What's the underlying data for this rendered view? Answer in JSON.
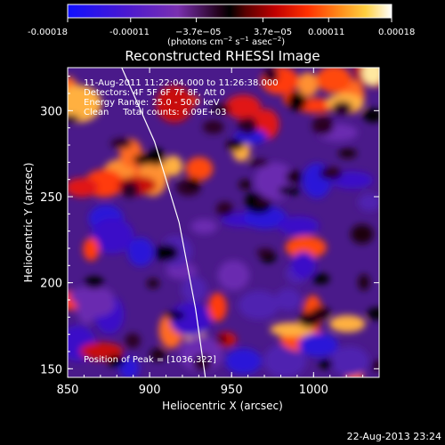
{
  "colorbar": {
    "ticks": [
      "-0.00018",
      "-0.00011",
      "−3.7e−05",
      "3.7e−05",
      "0.00011",
      "0.00018"
    ],
    "units_prefix": "(photons cm",
    "units_exp1": "−2",
    "units_mid": " s",
    "units_exp2": "−1",
    "units_mid2": " asec",
    "units_exp3": "−2",
    "units_suffix": ")"
  },
  "chart_data": {
    "type": "heatmap",
    "title": "Reconstructed RHESSI Image",
    "xlabel": "Heliocentric X (arcsec)",
    "ylabel": "Heliocentric Y (arcsec)",
    "xlim": [
      850,
      1040
    ],
    "ylim": [
      145,
      325
    ],
    "xticks": [
      850,
      900,
      950,
      1000
    ],
    "yticks": [
      150,
      200,
      250,
      300
    ],
    "color_range": [
      -0.00018,
      0.00018
    ],
    "colormap": "blue-purple-black-red-orange-yellow-white",
    "limb_curve": {
      "points": [
        [
          883,
          325
        ],
        [
          903,
          282
        ],
        [
          918,
          235
        ],
        [
          928,
          185
        ],
        [
          934,
          145
        ]
      ]
    },
    "peak": {
      "x": 1036,
      "y": 322
    },
    "annotations": [
      "11-Aug-2011 11:22:04.000 to 11:26:38.000",
      "Detectors: 4F 5F 6F 7F 8F, Att 0",
      "Energy Range: 25.0 - 50.0 keV",
      "Clean     Total counts: 6.09E+03",
      "Position of Peak = [1036,322]"
    ]
  },
  "footer": {
    "timestamp": "22-Aug-2013 23:24"
  }
}
